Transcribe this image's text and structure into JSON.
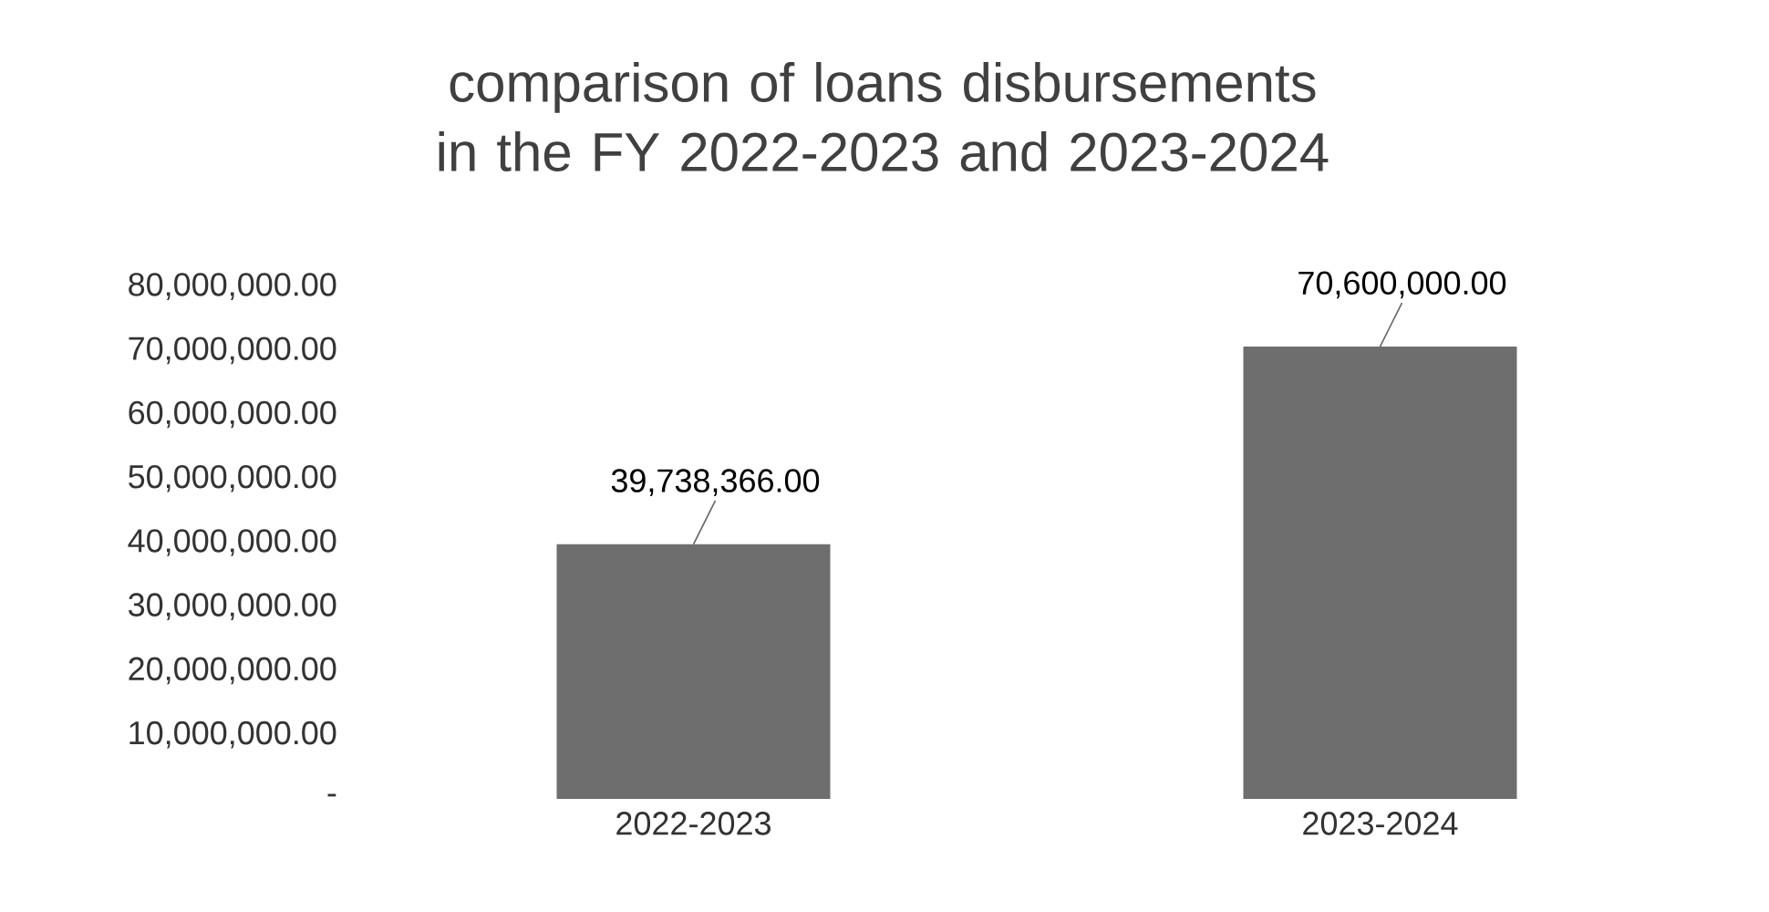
{
  "chart_data": {
    "type": "bar",
    "title": "comparison of loans disbursements in the FY 2022-2023 and 2023-2024",
    "categories": [
      "2022-2023",
      "2023-2024"
    ],
    "values": [
      39738366,
      70600000
    ],
    "value_labels": [
      "39,738,366.00",
      "70,600,000.00"
    ],
    "color": "#6e6e6e",
    "ylim": [
      0,
      80000000
    ],
    "yticks": [
      {
        "value": 0,
        "label": "-"
      },
      {
        "value": 10000000,
        "label": "10,000,000.00"
      },
      {
        "value": 20000000,
        "label": "20,000,000.00"
      },
      {
        "value": 30000000,
        "label": "30,000,000.00"
      },
      {
        "value": 40000000,
        "label": "40,000,000.00"
      },
      {
        "value": 50000000,
        "label": "50,000,000.00"
      },
      {
        "value": 60000000,
        "label": "60,000,000.00"
      },
      {
        "value": 70000000,
        "label": "70,000,000.00"
      },
      {
        "value": 80000000,
        "label": "80,000,000.00"
      }
    ]
  }
}
